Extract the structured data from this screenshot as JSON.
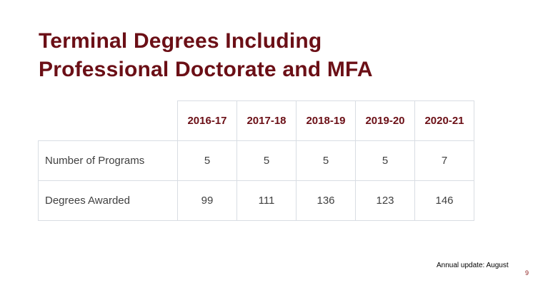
{
  "slide": {
    "title_line1": "Terminal Degrees Including",
    "title_line2": "Professional Doctorate and MFA",
    "footnote": "Annual update: August",
    "page_number": "9",
    "colors": {
      "title": "#6b0f16",
      "header_text": "#6b0f16",
      "body_text": "#404040",
      "grid": "#d9dde3",
      "page_number": "#8b1a1a"
    }
  },
  "table": {
    "headers": [
      "2016-17",
      "2017-18",
      "2018-19",
      "2019-20",
      "2020-21"
    ],
    "rows": [
      {
        "label": "Number of Programs",
        "values": [
          "5",
          "5",
          "5",
          "5",
          "7"
        ]
      },
      {
        "label": "Degrees Awarded",
        "values": [
          "99",
          "111",
          "136",
          "123",
          "146"
        ]
      }
    ]
  }
}
